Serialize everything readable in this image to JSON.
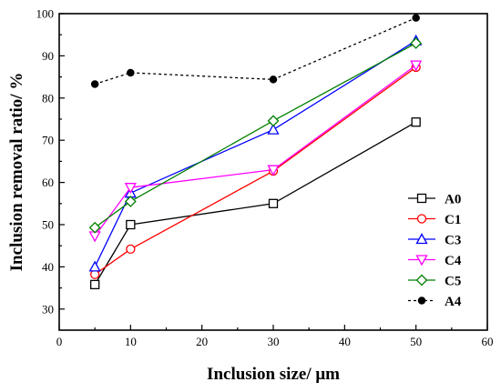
{
  "chart_data": {
    "type": "line",
    "xlabel": "Inclusion size/ μm",
    "ylabel": "Inclusion removal ratio/ %",
    "xlim": [
      0,
      60
    ],
    "ylim": [
      25,
      100
    ],
    "xticks": [
      0,
      10,
      20,
      30,
      40,
      50,
      60
    ],
    "yticks": [
      30,
      40,
      50,
      60,
      70,
      80,
      90,
      100
    ],
    "legend_position": "bottom-right",
    "grid": false,
    "x": [
      5,
      10,
      30,
      50
    ],
    "series": [
      {
        "name": "A0",
        "values": [
          35.8,
          50.0,
          55.0,
          74.3
        ],
        "color": "#000000",
        "marker": "square",
        "dash": "solid"
      },
      {
        "name": "C1",
        "values": [
          38.2,
          44.2,
          62.7,
          87.3
        ],
        "color": "#ff0000",
        "marker": "circle",
        "dash": "solid"
      },
      {
        "name": "C3",
        "values": [
          40.0,
          57.5,
          72.5,
          93.6
        ],
        "color": "#0000ff",
        "marker": "triangle-up",
        "dash": "solid"
      },
      {
        "name": "C4",
        "values": [
          47.3,
          58.8,
          63.0,
          87.8
        ],
        "color": "#ff00ff",
        "marker": "triangle-down",
        "dash": "solid"
      },
      {
        "name": "C5",
        "values": [
          49.3,
          55.5,
          74.6,
          93.0
        ],
        "color": "#008000",
        "marker": "diamond",
        "dash": "solid"
      },
      {
        "name": "A4",
        "values": [
          83.3,
          86.0,
          84.4,
          99.0
        ],
        "color": "#000000",
        "marker": "filled-circle",
        "dash": "dotted"
      }
    ]
  }
}
